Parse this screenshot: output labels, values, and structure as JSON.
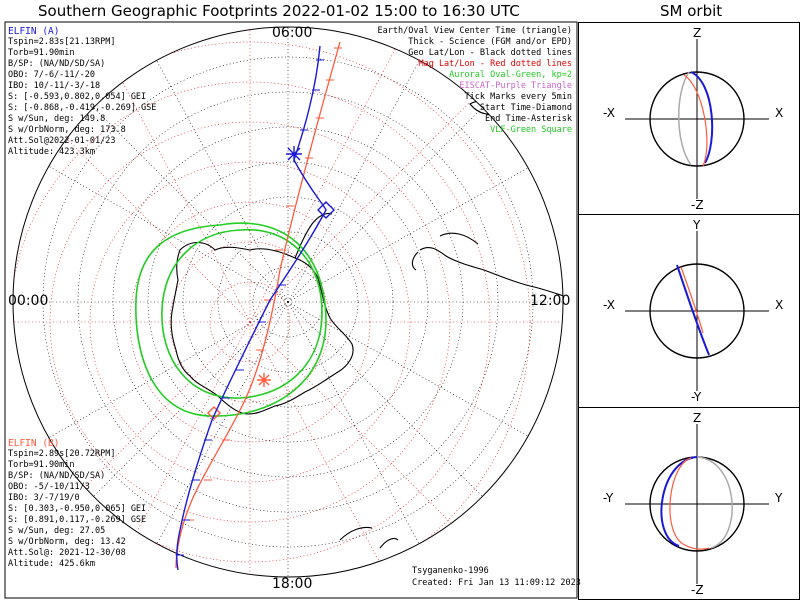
{
  "title": "Southern Geographic Footprints 2022-01-02 15:00 to 16:30 UTC",
  "orbit_title": "SM orbit",
  "clock": {
    "top": "06:00",
    "left": "00:00",
    "right": "12:00",
    "bottom": "18:00"
  },
  "elfin_a": {
    "name": "ELFIN (A)",
    "color": "#1a1ad6",
    "lines": [
      "Tspin=2.83s[21.13RPM]",
      "Torb=91.90min",
      "B/SP: (NA/ND/SD/SA)",
      "OBO: 7/-6/-11/-20",
      "IBO: 10/-11/-3/-18",
      "S: [-0.593,0.802,0.054] GEI",
      "S: [-0.868,-0.419,-0.269] GSE",
      "S w/Sun, deg: 149.8",
      "S w/OrbNorm, deg: 173.8",
      "Att.Sol@2022-01-01/23",
      "Altitude: 423.3km"
    ]
  },
  "elfin_b": {
    "name": "ELFIN (B)",
    "color": "#ff5a3c",
    "lines": [
      "Tspin=2.89s[20.72RPM]",
      "Torb=91.90min",
      "B/SP: (NA/ND/SD/SA)",
      "OBO: -5/-10/11/3",
      "IBO: 3/-7/19/0",
      "S: [0.303,-0.950,0.065] GEI",
      "S: [0.891,0.117,-0.269] GSE",
      "S w/Sun, deg: 27.05",
      "S w/OrbNorm, deg: 13.42",
      "Att.Sol@: 2021-12-30/08",
      "Altitude: 425.6km"
    ]
  },
  "legend": [
    {
      "text": "Earth/Oval View Center Time (triangle)",
      "color": "#000000"
    },
    {
      "text": "Thick - Science (FGM and/or EPD)",
      "color": "#000000"
    },
    {
      "text": "Geo Lat/Lon - Black dotted lines",
      "color": "#000000"
    },
    {
      "text": "Mag Lat/Lon - Red dotted lines",
      "color": "#e00000"
    },
    {
      "text": "Auroral Oval-Green, kp=2",
      "color": "#22cc22"
    },
    {
      "text": "EISCAT-Purple Triangle",
      "color": "#cc66cc"
    },
    {
      "text": "Tick Marks every 5min",
      "color": "#000000"
    },
    {
      "text": "Start Time-Diamond",
      "color": "#000000"
    },
    {
      "text": "End Time-Asterisk",
      "color": "#000000"
    },
    {
      "text": "VLF-Green Square",
      "color": "#22cc22"
    }
  ],
  "footer": {
    "model": "Tsyganenko-1996",
    "created": "Created: Fri Jan 13 11:09:12 2023"
  },
  "panels": [
    {
      "top": "Z",
      "bottom": "-Z",
      "left": "-X",
      "right": "X"
    },
    {
      "top": "Y",
      "bottom": "-Y",
      "left": "-X",
      "right": "X"
    },
    {
      "top": "Z",
      "bottom": "-Z",
      "left": "-Y",
      "right": "Y"
    }
  ]
}
